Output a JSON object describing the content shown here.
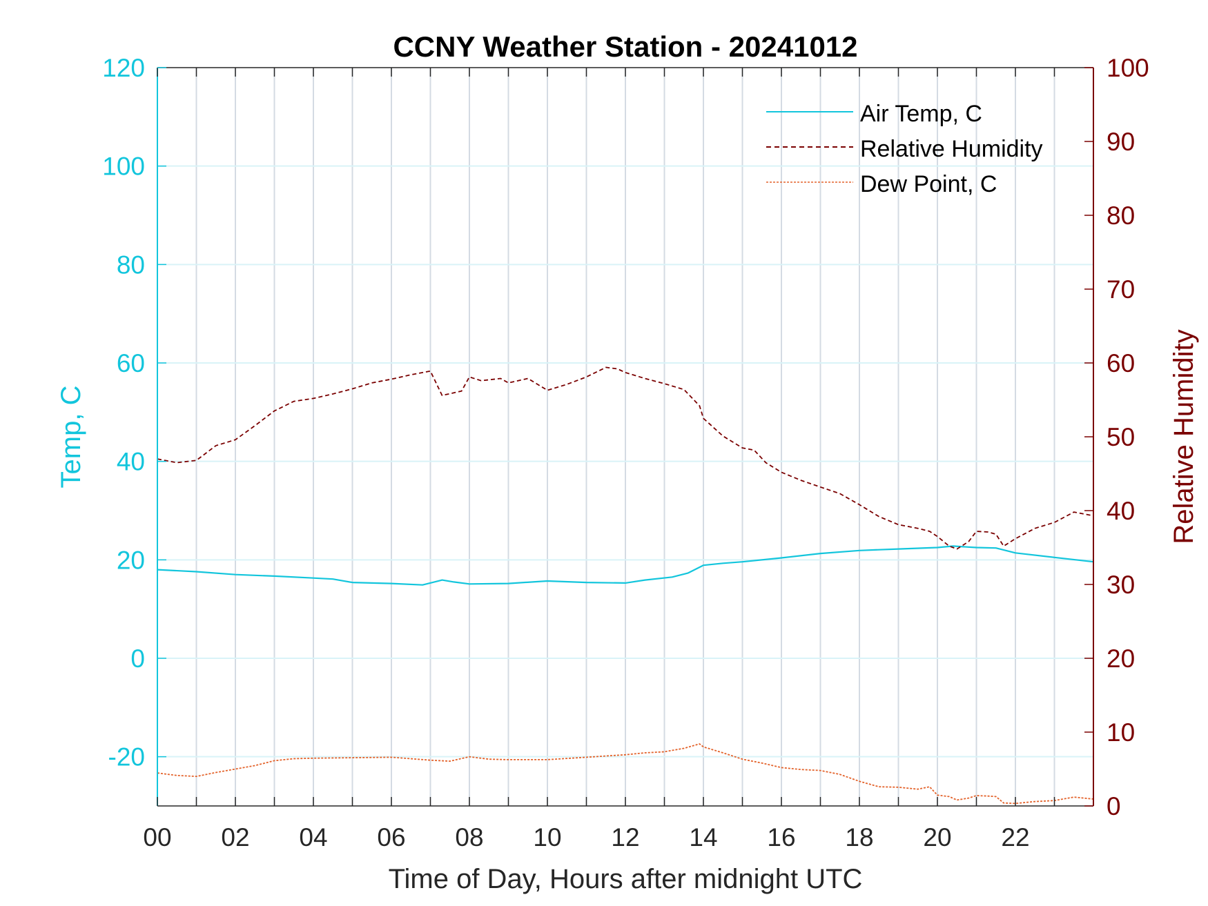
{
  "colors": {
    "left_axis": "#12c5dc",
    "right_axis": "#7a0000",
    "air_temp": "#12c5dc",
    "relative_humidity": "#7a0000",
    "dew_point": "#e3622a",
    "grid_vertical": "#d4dbe3",
    "grid_horizontal": "#d9f3f8"
  },
  "chart_data": {
    "type": "line",
    "title": "CCNY Weather Station - 20241012",
    "xlabel": "Time of Day, Hours after midnight UTC",
    "ylabel_left": "Temp, C",
    "ylabel_right": "Relative Humidity",
    "xlim": [
      0,
      24
    ],
    "ylim_left": [
      -30,
      120
    ],
    "ylim_right": [
      0,
      100
    ],
    "x_ticks": [
      0,
      1,
      2,
      3,
      4,
      5,
      6,
      7,
      8,
      9,
      10,
      11,
      12,
      13,
      14,
      15,
      16,
      17,
      18,
      19,
      20,
      21,
      22,
      23
    ],
    "x_tick_labels": [
      "00",
      "",
      "02",
      "",
      "04",
      "",
      "06",
      "",
      "08",
      "",
      "10",
      "",
      "12",
      "",
      "14",
      "",
      "16",
      "",
      "18",
      "",
      "20",
      "",
      "22",
      ""
    ],
    "y_ticks_left": [
      -20,
      0,
      20,
      40,
      60,
      80,
      100,
      120
    ],
    "y_tick_labels_left": [
      "-20",
      "0",
      "20",
      "40",
      "60",
      "80",
      "100",
      "120"
    ],
    "y_ticks_right": [
      0,
      10,
      20,
      30,
      40,
      50,
      60,
      70,
      80,
      90,
      100
    ],
    "y_tick_labels_right": [
      "0",
      "10",
      "20",
      "30",
      "40",
      "50",
      "60",
      "70",
      "80",
      "90",
      "100"
    ],
    "grid": true,
    "legend_position": "top-right",
    "legend": [
      "Air Temp, C",
      "Relative Humidity",
      "Dew Point, C"
    ],
    "series": [
      {
        "name": "Air Temp, C",
        "axis": "left",
        "style": "solid",
        "x": [
          0,
          1,
          2,
          3,
          4,
          4.5,
          5,
          6,
          6.8,
          7.3,
          7.6,
          8,
          9,
          10,
          11,
          12,
          12.5,
          13.2,
          13.6,
          14,
          14.5,
          15,
          16,
          17,
          18,
          19,
          20,
          20.4,
          21,
          21.5,
          22,
          23,
          24
        ],
        "y": [
          18,
          17.6,
          17,
          16.7,
          16.3,
          16.1,
          15.4,
          15.2,
          14.9,
          15.9,
          15.5,
          15.1,
          15.2,
          15.7,
          15.4,
          15.3,
          15.9,
          16.5,
          17.3,
          18.9,
          19.3,
          19.6,
          20.4,
          21.3,
          21.9,
          22.2,
          22.5,
          22.8,
          22.5,
          22.4,
          21.4,
          20.5,
          19.6
        ]
      },
      {
        "name": "Relative Humidity",
        "axis": "right",
        "style": "dashed",
        "x": [
          0,
          0.5,
          1,
          1.5,
          2,
          2.5,
          3,
          3.5,
          4,
          4.5,
          5,
          5.5,
          6,
          6.5,
          6.8,
          7,
          7.3,
          7.8,
          8,
          8.3,
          8.8,
          9,
          9.5,
          10,
          10.5,
          11,
          11.5,
          11.8,
          12,
          12.5,
          13,
          13.5,
          13.9,
          14,
          14.5,
          15,
          15.3,
          15.6,
          16,
          16.5,
          17,
          17.5,
          18,
          18.5,
          19,
          19.5,
          19.8,
          20,
          20.3,
          20.5,
          20.8,
          21,
          21.3,
          21.5,
          21.7,
          22,
          22.5,
          23,
          23.5,
          24
        ],
        "y": [
          47,
          46.5,
          46.8,
          48.8,
          49.6,
          51.5,
          53.5,
          54.8,
          55.2,
          55.8,
          56.5,
          57.3,
          57.8,
          58.4,
          58.7,
          58.9,
          55.6,
          56.2,
          58.1,
          57.6,
          57.9,
          57.3,
          57.9,
          56.3,
          57.1,
          58.1,
          59.4,
          59.2,
          58.7,
          57.9,
          57.2,
          56.4,
          54.2,
          52.5,
          50.1,
          48.5,
          48.2,
          46.5,
          45.2,
          44.1,
          43.2,
          42.3,
          40.8,
          39.2,
          38.1,
          37.6,
          37.2,
          36.5,
          35.2,
          34.8,
          35.8,
          37.2,
          37.1,
          36.8,
          35.2,
          36.2,
          37.6,
          38.4,
          39.8,
          39.3
        ]
      },
      {
        "name": "Dew Point, C",
        "axis": "left",
        "style": "dotted",
        "x": [
          0,
          0.5,
          1,
          1.5,
          2,
          2.5,
          3,
          3.5,
          4,
          5,
          6,
          7,
          7.5,
          8,
          8.5,
          9,
          10,
          11,
          12,
          12.5,
          13,
          13.5,
          13.9,
          14,
          14.5,
          15,
          15.5,
          16,
          16.5,
          17,
          17.5,
          18,
          18.5,
          19,
          19.5,
          19.8,
          20,
          20.3,
          20.5,
          20.8,
          21,
          21.3,
          21.5,
          21.7,
          22,
          22.5,
          23,
          23.5,
          24
        ],
        "y": [
          -23.3,
          -23.8,
          -24,
          -23.2,
          -22.5,
          -21.8,
          -20.8,
          -20.4,
          -20.3,
          -20.2,
          -20.1,
          -20.7,
          -20.9,
          -20,
          -20.5,
          -20.6,
          -20.6,
          -20.1,
          -19.6,
          -19.2,
          -19,
          -18.3,
          -17.4,
          -18,
          -19.2,
          -20.5,
          -21.3,
          -22.2,
          -22.6,
          -22.8,
          -23.6,
          -25,
          -26.1,
          -26.2,
          -26.6,
          -26.1,
          -27.8,
          -28.1,
          -28.8,
          -28.4,
          -27.9,
          -28,
          -28.1,
          -29.4,
          -29.5,
          -29.1,
          -28.9,
          -28.2,
          -28.6
        ]
      }
    ]
  }
}
